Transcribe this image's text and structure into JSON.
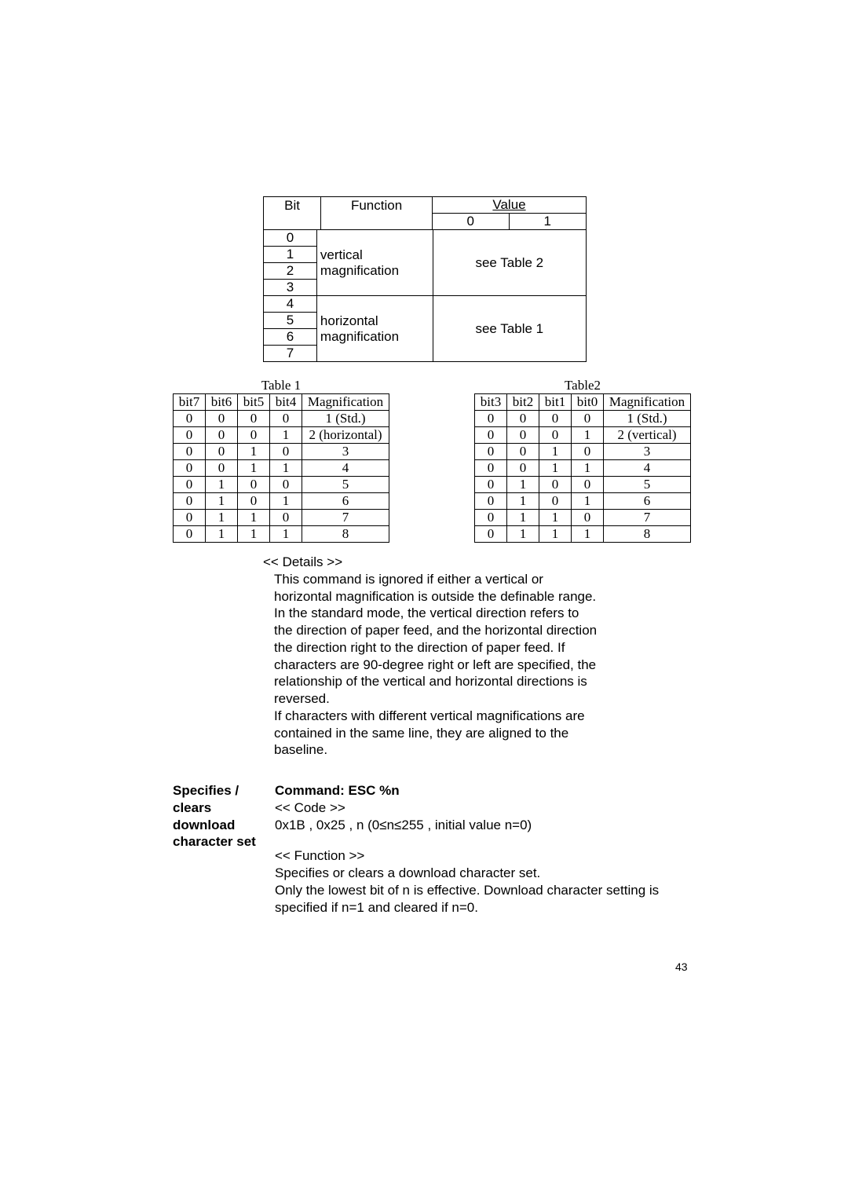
{
  "bitTable": {
    "h_bit": "Bit",
    "h_func": "Function",
    "h_value": "Value",
    "h_val0": "0",
    "h_val1": "1",
    "group1": {
      "bits": [
        "0",
        "1",
        "2",
        "3"
      ],
      "func_l1": "vertical",
      "func_l2": "magnification",
      "value": "see Table 2"
    },
    "group2": {
      "bits": [
        "4",
        "5",
        "6",
        "7"
      ],
      "func_l1": "horizontal",
      "func_l2": "magnification",
      "value": "see Table 1"
    }
  },
  "table1": {
    "caption": "Table 1",
    "headers": [
      "bit7",
      "bit6",
      "bit5",
      "bit4",
      "Magnification"
    ],
    "rows": [
      [
        "0",
        "0",
        "0",
        "0",
        "1 (Std.)"
      ],
      [
        "0",
        "0",
        "0",
        "1",
        "2 (horizontal)"
      ],
      [
        "0",
        "0",
        "1",
        "0",
        "3"
      ],
      [
        "0",
        "0",
        "1",
        "1",
        "4"
      ],
      [
        "0",
        "1",
        "0",
        "0",
        "5"
      ],
      [
        "0",
        "1",
        "0",
        "1",
        "6"
      ],
      [
        "0",
        "1",
        "1",
        "0",
        "7"
      ],
      [
        "0",
        "1",
        "1",
        "1",
        "8"
      ]
    ]
  },
  "table2": {
    "caption": "Table2",
    "headers": [
      "bit3",
      "bit2",
      "bit1",
      "bit0",
      "Magnification"
    ],
    "rows": [
      [
        "0",
        "0",
        "0",
        "0",
        "1 (Std.)"
      ],
      [
        "0",
        "0",
        "0",
        "1",
        "2 (vertical)"
      ],
      [
        "0",
        "0",
        "1",
        "0",
        "3"
      ],
      [
        "0",
        "0",
        "1",
        "1",
        "4"
      ],
      [
        "0",
        "1",
        "0",
        "0",
        "5"
      ],
      [
        "0",
        "1",
        "0",
        "1",
        "6"
      ],
      [
        "0",
        "1",
        "1",
        "0",
        "7"
      ],
      [
        "0",
        "1",
        "1",
        "1",
        "8"
      ]
    ]
  },
  "details": {
    "title": "<< Details >>",
    "body": "This command is ignored if either a vertical or horizontal magnification is outside the definable range.\nIn the standard mode, the vertical direction refers to the direction of paper feed, and the horizontal direction the direction right to the direction of paper feed.  If characters are 90-degree right or left are specified, the relationship of the vertical and horizontal directions is reversed.\nIf characters with different vertical  magnifications are contained in the same line, they are aligned to the baseline."
  },
  "command": {
    "side": "Specifies / clears download character set",
    "title": "Command:   ESC %n",
    "codeLabel": "<< Code >>",
    "code": "0x1B , 0x25 , n (0≤n≤255 ,  initial value n=0)",
    "funcLabel": "<< Function >>",
    "funcBody": "Specifies or clears a download character set.\nOnly the lowest bit of n is effective.  Download character setting is specified if n=1 and cleared if n=0."
  },
  "pageNum": "43"
}
